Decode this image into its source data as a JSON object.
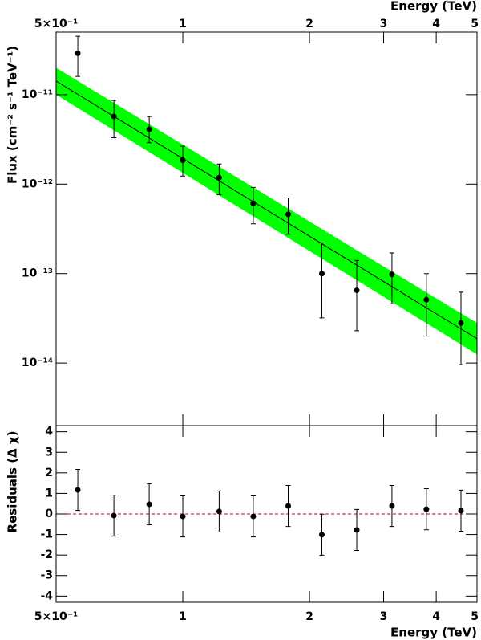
{
  "chart_data": [
    {
      "type": "scatter",
      "x_label": "Energy (TeV)",
      "y_label": "Flux (cm⁻² s⁻¹ TeV⁻¹)",
      "x": [
        0.563,
        0.686,
        0.832,
        1.0,
        1.22,
        1.47,
        1.78,
        2.14,
        2.59,
        3.14,
        3.79,
        4.58
      ],
      "values": [
        2.9e-11,
        5.7e-12,
        4.1e-12,
        1.85e-12,
        1.18e-12,
        6.1e-13,
        4.6e-13,
        1e-13,
        6.5e-14,
        9.8e-14,
        5.1e-14,
        2.8e-14
      ],
      "lower": [
        1.6e-11,
        3.3e-12,
        2.9e-12,
        1.23e-12,
        7.6e-13,
        3.6e-13,
        2.75e-13,
        3.2e-14,
        2.3e-14,
        4.6e-14,
        2e-14,
        9.6e-15
      ],
      "upper": [
        4.5e-11,
        8.6e-12,
        5.7e-12,
        2.65e-12,
        1.68e-12,
        9.2e-13,
        7e-13,
        2.2e-13,
        1.4e-13,
        1.7e-13,
        1e-13,
        6.2e-14
      ],
      "color": "#000000",
      "fit": {
        "x": [
          0.5,
          5
        ],
        "values": [
          1.42e-11,
          1.87e-14
        ],
        "lower": [
          1e-11,
          1.25e-14
        ],
        "upper": [
          2e-11,
          2.8e-14
        ],
        "color": "#000000",
        "band_color": "#00ff00"
      },
      "xlog": true,
      "ylog": true,
      "xlim": [
        0.5,
        5
      ],
      "ylim": [
        2e-15,
        5e-11
      ],
      "xticks": [
        {
          "value": 0.5,
          "label": "5×10⁻¹"
        },
        1,
        2,
        3,
        4,
        5
      ],
      "yticks": [
        {
          "value": 1e-14,
          "label": "10⁻¹⁴"
        },
        {
          "value": 1e-13,
          "label": "10⁻¹³"
        },
        {
          "value": 1e-12,
          "label": "10⁻¹²"
        },
        {
          "value": 1e-11,
          "label": "10⁻¹¹"
        }
      ],
      "xtick_side": "top"
    },
    {
      "type": "scatter",
      "x_label": "Energy (TeV)",
      "y_label": "Residuals (Δ χ)",
      "x": [
        0.563,
        0.686,
        0.832,
        1.0,
        1.22,
        1.47,
        1.78,
        2.14,
        2.59,
        3.14,
        3.79,
        4.58
      ],
      "values": [
        1.17,
        -0.08,
        0.47,
        -0.12,
        0.12,
        -0.12,
        0.39,
        -1.01,
        -0.78,
        0.39,
        0.23,
        0.16
      ],
      "errors": [
        1,
        1,
        1,
        1,
        1,
        1,
        1,
        1,
        1,
        1,
        1,
        1
      ],
      "color": "#000000",
      "reference_line": {
        "value": 0,
        "color": "#cc0000"
      },
      "xlog": true,
      "ylog": false,
      "xlim": [
        0.5,
        5
      ],
      "ylim": [
        -4.3,
        4.3
      ],
      "xticks": [
        {
          "value": 0.5,
          "label": "5×10⁻¹"
        },
        1,
        2,
        3,
        4,
        5
      ],
      "yticks": [
        -4,
        -3,
        -2,
        -1,
        0,
        1,
        2,
        3,
        4
      ],
      "xtick_side": "bottom"
    }
  ]
}
